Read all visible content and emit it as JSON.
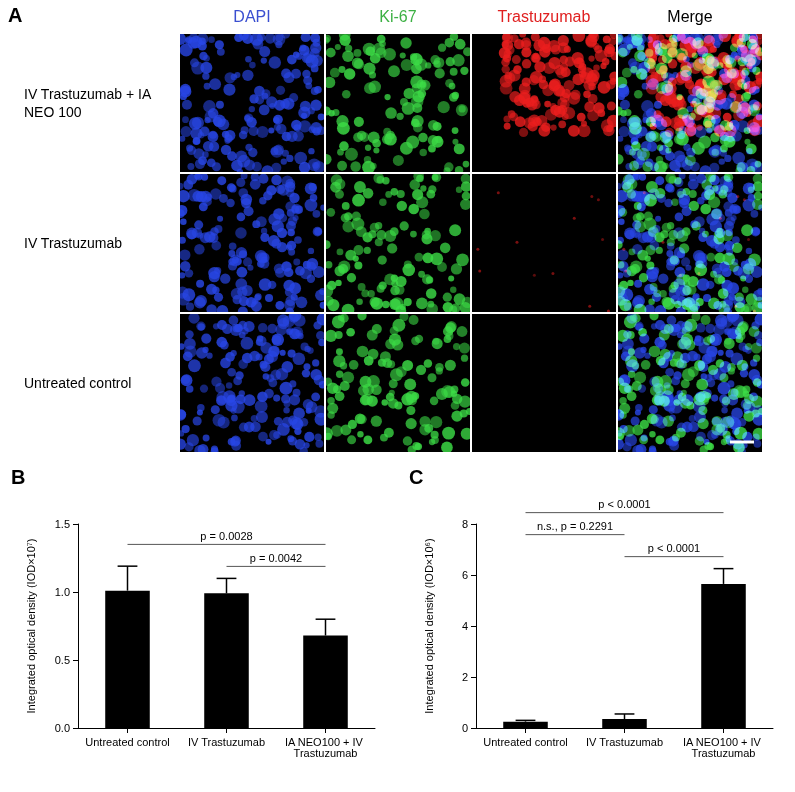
{
  "panel_a": {
    "title": "A",
    "columns": [
      "DAPI",
      "Ki-67",
      "Trastuzumab",
      "Merge"
    ],
    "colors": [
      "#3a4fd0",
      "#3cb043",
      "#e02020",
      "#000000"
    ],
    "rows": [
      "IV Trastuzumab + IA NEO 100",
      "IV Trastuzumab",
      "Untreated control"
    ]
  },
  "chart_data": [
    {
      "type": "bar",
      "title": "B",
      "categories": [
        "Untreated control",
        "IV Trastuzumab",
        "IA NEO100 + IV Trastuzumab"
      ],
      "values": [
        1.01,
        0.99,
        0.68
      ],
      "error": [
        0.18,
        0.11,
        0.12
      ],
      "color": "#000000",
      "ylabel": "Integrated optical density (IOD×10⁷)",
      "ylim": [
        0,
        1.5
      ],
      "yticks": [
        {
          "value": 0,
          "label": "0.0"
        },
        {
          "value": 0.5,
          "label": "0.5"
        },
        {
          "value": 1,
          "label": "1.0"
        },
        {
          "value": 1.5,
          "label": "1.5"
        }
      ],
      "grid": false,
      "annotations": [
        {
          "from": 0,
          "to": 2,
          "label": "p = 0.0028"
        },
        {
          "from": 1,
          "to": 2,
          "label": "p = 0.0042"
        }
      ]
    },
    {
      "type": "bar",
      "title": "C",
      "categories": [
        "Untreated control",
        "IV Trastuzumab",
        "IA NEO100 + IV Trastuzumab"
      ],
      "values": [
        0.25,
        0.35,
        5.65
      ],
      "error": [
        0.05,
        0.2,
        0.6
      ],
      "color": "#000000",
      "ylabel": "Integrated optical density (IOD×10⁶)",
      "ylim": [
        0,
        8
      ],
      "yticks": [
        0,
        2,
        4,
        6,
        8
      ],
      "grid": false,
      "annotations": [
        {
          "from": 0,
          "to": 2,
          "label": "p < 0.0001"
        },
        {
          "from": 1,
          "to": 2,
          "label": "p < 0.0001"
        },
        {
          "from": 0,
          "to": 1,
          "label": "n.s., p = 0.2291"
        }
      ]
    }
  ]
}
